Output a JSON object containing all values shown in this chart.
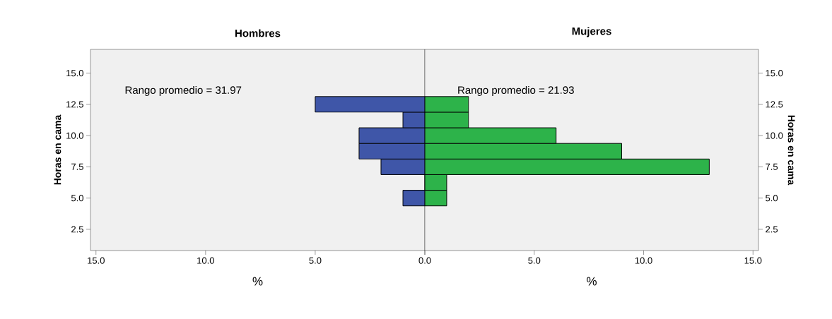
{
  "chart_data": [
    {
      "type": "histogram",
      "orientation": "horizontal",
      "title": "Hombres",
      "xlabel": "%",
      "ylabel": "Horas en cama",
      "color": "#3f56a8",
      "bins": [
        4.375,
        5.625,
        6.875,
        8.125,
        9.375,
        10.625,
        11.875,
        13.125
      ],
      "values": [
        1,
        0,
        2,
        3,
        3,
        1,
        5
      ],
      "xlim": [
        15.25,
        0
      ],
      "ylim": [
        0.8,
        16.9
      ],
      "xticks": [
        {
          "value": 15,
          "label": "15.0"
        },
        {
          "value": 10,
          "label": "10.0"
        },
        {
          "value": 5,
          "label": "5.0"
        },
        {
          "value": 0,
          "label": null
        }
      ],
      "yticks": [
        {
          "value": 2.5,
          "label": "2.5"
        },
        {
          "value": 5,
          "label": "5.0"
        },
        {
          "value": 7.5,
          "label": "7.5"
        },
        {
          "value": 10,
          "label": "10.0"
        },
        {
          "value": 12.5,
          "label": "12.5"
        },
        {
          "value": 15,
          "label": "15.0"
        }
      ],
      "annotations": [
        "Rango promedio = 31.97"
      ]
    },
    {
      "type": "histogram",
      "orientation": "horizontal",
      "title": "Mujeres",
      "xlabel": "%",
      "ylabel": "Horas en cama",
      "color": "#2db34a",
      "bins": [
        4.375,
        5.625,
        6.875,
        8.125,
        9.375,
        10.625,
        11.875,
        13.125
      ],
      "values": [
        1,
        1,
        13,
        9,
        6,
        2,
        2
      ],
      "xlim": [
        0,
        15.25
      ],
      "ylim": [
        0.8,
        16.9
      ],
      "xticks": [
        {
          "value": 0,
          "label": "0.0"
        },
        {
          "value": 5,
          "label": "5.0"
        },
        {
          "value": 10,
          "label": "10.0"
        },
        {
          "value": 15,
          "label": "15.0"
        }
      ],
      "yticks": [
        {
          "value": 2.5,
          "label": "2.5"
        },
        {
          "value": 5,
          "label": "5.0"
        },
        {
          "value": 7.5,
          "label": "7.5"
        },
        {
          "value": 10,
          "label": "10.0"
        },
        {
          "value": 12.5,
          "label": "12.5"
        },
        {
          "value": 15,
          "label": "15.0"
        }
      ],
      "annotations": [
        "Rango promedio = 21.93"
      ]
    }
  ]
}
